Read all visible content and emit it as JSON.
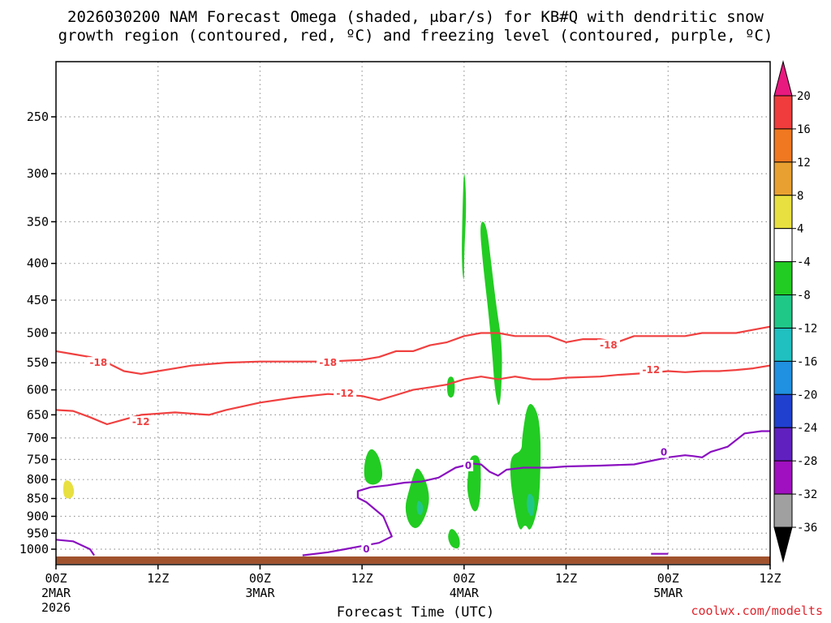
{
  "chart_data": {
    "type": "heatmap",
    "title_line_1": "2026030200 NAM Forecast Omega (shaded, μbar/s) for KB#Q with dendritic snow",
    "title_line_2": "growth region (contoured, red, ºC) and freezing level (contoured, purple, ºC)",
    "xlabel": "Forecast Time (UTC)",
    "credit": "coolwx.com/modelts",
    "x_range_hours": [
      0,
      84
    ],
    "x_ticks": [
      {
        "hour": 0,
        "label": "00Z",
        "sub1": "2MAR",
        "sub2": "2026"
      },
      {
        "hour": 12,
        "label": "12Z",
        "sub1": "",
        "sub2": ""
      },
      {
        "hour": 24,
        "label": "00Z",
        "sub1": "3MAR",
        "sub2": ""
      },
      {
        "hour": 36,
        "label": "12Z",
        "sub1": "",
        "sub2": ""
      },
      {
        "hour": 48,
        "label": "00Z",
        "sub1": "4MAR",
        "sub2": ""
      },
      {
        "hour": 60,
        "label": "12Z",
        "sub1": "",
        "sub2": ""
      },
      {
        "hour": 72,
        "label": "00Z",
        "sub1": "5MAR",
        "sub2": ""
      },
      {
        "hour": 84,
        "label": "12Z",
        "sub1": "",
        "sub2": ""
      }
    ],
    "y_axis": "pressure (hPa), log scale, inverted",
    "y_range_hpa": [
      1040,
      200
    ],
    "y_ticks": [
      250,
      300,
      350,
      400,
      450,
      500,
      550,
      600,
      650,
      700,
      750,
      800,
      850,
      900,
      950,
      1000
    ],
    "colorbar": {
      "labels": [
        "20",
        "16",
        "12",
        "8",
        "4",
        "-4",
        "-8",
        "-12",
        "-16",
        "-20",
        "-24",
        "-28",
        "-32",
        "-36"
      ],
      "colors": [
        "#e8197f",
        "#f03c3c",
        "#f07820",
        "#e8a030",
        "#e8e040",
        "#ffffff",
        "#22cc22",
        "#20c888",
        "#20c0c0",
        "#2090e0",
        "#2040d0",
        "#6020c0",
        "#a010c0",
        "#a0a0a0",
        "#000000"
      ]
    },
    "contours": [
      {
        "name": "dgz-18",
        "color": "#f04040",
        "label": "-18",
        "label_points": [
          [
            5,
            550
          ],
          [
            32,
            550
          ],
          [
            65,
            520
          ]
        ],
        "points": [
          [
            0,
            530
          ],
          [
            2,
            535
          ],
          [
            4,
            540
          ],
          [
            6,
            550
          ],
          [
            8,
            565
          ],
          [
            10,
            570
          ],
          [
            12,
            565
          ],
          [
            14,
            560
          ],
          [
            16,
            555
          ],
          [
            20,
            550
          ],
          [
            24,
            548
          ],
          [
            28,
            548
          ],
          [
            32,
            548
          ],
          [
            36,
            545
          ],
          [
            38,
            540
          ],
          [
            40,
            530
          ],
          [
            42,
            530
          ],
          [
            44,
            520
          ],
          [
            46,
            515
          ],
          [
            48,
            505
          ],
          [
            50,
            500
          ],
          [
            52,
            500
          ],
          [
            54,
            505
          ],
          [
            56,
            505
          ],
          [
            58,
            505
          ],
          [
            60,
            515
          ],
          [
            62,
            510
          ],
          [
            64,
            510
          ],
          [
            66,
            515
          ],
          [
            68,
            505
          ],
          [
            70,
            505
          ],
          [
            72,
            505
          ],
          [
            74,
            505
          ],
          [
            76,
            500
          ],
          [
            78,
            500
          ],
          [
            80,
            500
          ],
          [
            82,
            495
          ],
          [
            84,
            490
          ]
        ]
      },
      {
        "name": "dgz-12",
        "color": "#f04040",
        "label": "-12",
        "label_points": [
          [
            10,
            665
          ],
          [
            34,
            607
          ],
          [
            70,
            563
          ]
        ],
        "points": [
          [
            0,
            640
          ],
          [
            2,
            642
          ],
          [
            4,
            655
          ],
          [
            6,
            670
          ],
          [
            8,
            660
          ],
          [
            10,
            650
          ],
          [
            14,
            645
          ],
          [
            18,
            650
          ],
          [
            20,
            640
          ],
          [
            24,
            625
          ],
          [
            28,
            615
          ],
          [
            32,
            608
          ],
          [
            36,
            612
          ],
          [
            38,
            620
          ],
          [
            40,
            610
          ],
          [
            42,
            600
          ],
          [
            44,
            595
          ],
          [
            46,
            590
          ],
          [
            48,
            580
          ],
          [
            50,
            575
          ],
          [
            52,
            580
          ],
          [
            54,
            575
          ],
          [
            56,
            580
          ],
          [
            58,
            580
          ],
          [
            60,
            577
          ],
          [
            64,
            575
          ],
          [
            66,
            572
          ],
          [
            68,
            570
          ],
          [
            70,
            568
          ],
          [
            72,
            565
          ],
          [
            74,
            567
          ],
          [
            76,
            565
          ],
          [
            78,
            565
          ],
          [
            80,
            563
          ],
          [
            82,
            560
          ],
          [
            84,
            555
          ]
        ]
      },
      {
        "name": "freezing-level",
        "color": "#8a10c0",
        "label": "0",
        "label_points": [
          [
            48.5,
            765
          ],
          [
            71.5,
            733
          ],
          [
            36.5,
            1000
          ]
        ],
        "points": [
          [
            0,
            970
          ],
          [
            2,
            975
          ],
          [
            4,
            1000
          ],
          [
            4.5,
            1020
          ]
        ]
      },
      {
        "name": "freezing-level-2",
        "color": "#8a10c0",
        "label": "",
        "points": [
          [
            29,
            1020
          ],
          [
            32,
            1010
          ],
          [
            34,
            1000
          ],
          [
            36,
            990
          ],
          [
            38,
            980
          ],
          [
            39.5,
            960
          ],
          [
            38.5,
            900
          ],
          [
            36.5,
            860
          ],
          [
            35.5,
            848
          ],
          [
            35.5,
            830
          ],
          [
            37,
            820
          ],
          [
            39,
            815
          ],
          [
            41,
            808
          ],
          [
            43,
            805
          ],
          [
            45,
            795
          ],
          [
            47,
            770
          ],
          [
            49,
            760
          ],
          [
            50,
            762
          ],
          [
            51,
            780
          ],
          [
            52,
            790
          ],
          [
            53,
            775
          ],
          [
            55,
            770
          ],
          [
            58,
            770
          ],
          [
            60,
            767
          ],
          [
            64,
            765
          ],
          [
            68,
            762
          ],
          [
            72,
            745
          ],
          [
            74,
            740
          ],
          [
            75,
            742
          ],
          [
            76,
            745
          ],
          [
            77,
            732
          ],
          [
            79,
            720
          ],
          [
            81,
            690
          ],
          [
            83,
            685
          ],
          [
            84,
            685
          ]
        ]
      },
      {
        "name": "freezing-level-3",
        "color": "#8a10c0",
        "label": "",
        "points": [
          [
            70,
            1015
          ],
          [
            72,
            1015
          ]
        ]
      }
    ],
    "shaded_regions": [
      {
        "name": "omega-green-1",
        "color": "#22cc22",
        "points": [
          [
            48,
            290
          ],
          [
            48.3,
            330
          ],
          [
            48,
            390
          ],
          [
            48,
            430
          ],
          [
            47.7,
            400
          ],
          [
            47.8,
            340
          ]
        ]
      },
      {
        "name": "omega-green-2",
        "color": "#22cc22",
        "points": [
          [
            49.8,
            350
          ],
          [
            50.6,
            350
          ],
          [
            51.2,
            400
          ],
          [
            51.8,
            460
          ],
          [
            52.5,
            520
          ],
          [
            52.4,
            600
          ],
          [
            52.1,
            640
          ],
          [
            51.6,
            600
          ],
          [
            51.3,
            530
          ],
          [
            50.8,
            460
          ],
          [
            50.2,
            400
          ]
        ]
      },
      {
        "name": "omega-green-3",
        "color": "#22cc22",
        "points": [
          [
            46.0,
            575
          ],
          [
            46.9,
            575
          ],
          [
            46.9,
            615
          ],
          [
            46.0,
            615
          ]
        ]
      },
      {
        "name": "omega-green-4",
        "color": "#22cc22",
        "points": [
          [
            37,
            720
          ],
          [
            38,
            740
          ],
          [
            38.5,
            790
          ],
          [
            38,
            810
          ],
          [
            37,
            815
          ],
          [
            36.2,
            800
          ],
          [
            36.3,
            750
          ]
        ]
      },
      {
        "name": "omega-green-5",
        "color": "#22cc22",
        "points": [
          [
            42.5,
            765
          ],
          [
            43.5,
            800
          ],
          [
            44,
            850
          ],
          [
            43.5,
            900
          ],
          [
            42.5,
            940
          ],
          [
            41.5,
            925
          ],
          [
            41,
            875
          ],
          [
            41.5,
            830
          ],
          [
            42,
            790
          ]
        ]
      },
      {
        "name": "omega-green-6",
        "color": "#22cc22",
        "points": [
          [
            46.5,
            930
          ],
          [
            47.5,
            960
          ],
          [
            47.5,
            1000
          ],
          [
            46.5,
            995
          ],
          [
            46,
            960
          ]
        ]
      },
      {
        "name": "omega-green-7",
        "color": "#22cc22",
        "points": [
          [
            48.7,
            740
          ],
          [
            49.9,
            740
          ],
          [
            50,
            800
          ],
          [
            49.8,
            880
          ],
          [
            49,
            890
          ],
          [
            48.3,
            830
          ],
          [
            48.5,
            780
          ]
        ]
      },
      {
        "name": "omega-green-8",
        "color": "#22cc22",
        "points": [
          [
            53.5,
            740
          ],
          [
            54.8,
            730
          ],
          [
            54.8,
            700
          ],
          [
            55.5,
            620
          ],
          [
            56.6,
            640
          ],
          [
            57,
            690
          ],
          [
            57,
            770
          ],
          [
            56.8,
            870
          ],
          [
            55.8,
            950
          ],
          [
            55.2,
            920
          ],
          [
            54.5,
            950
          ],
          [
            53.8,
            860
          ],
          [
            53.4,
            790
          ]
        ]
      },
      {
        "name": "omega-teal-1",
        "color": "#20c888",
        "points": [
          [
            42.5,
            850
          ],
          [
            43.3,
            870
          ],
          [
            43,
            900
          ],
          [
            42.4,
            890
          ]
        ]
      },
      {
        "name": "omega-teal-2",
        "color": "#20c888",
        "points": [
          [
            55.5,
            830
          ],
          [
            56.4,
            850
          ],
          [
            56.1,
            910
          ],
          [
            55.3,
            880
          ]
        ]
      },
      {
        "name": "omega-yellow-1",
        "color": "#e8e040",
        "points": [
          [
            1.0,
            800
          ],
          [
            1.8,
            805
          ],
          [
            2.2,
            830
          ],
          [
            1.9,
            850
          ],
          [
            1.0,
            850
          ],
          [
            0.8,
            825
          ]
        ]
      }
    ]
  }
}
